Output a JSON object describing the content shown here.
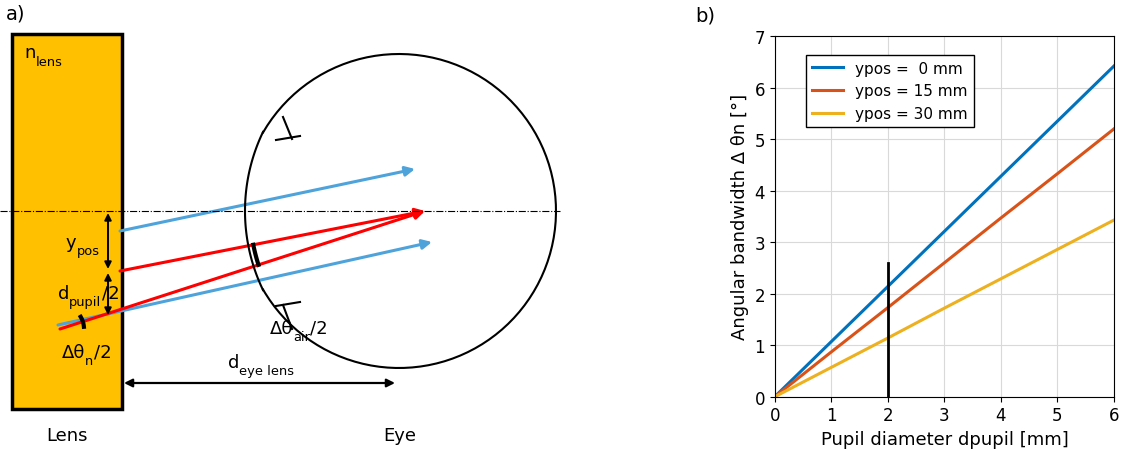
{
  "diagram": {
    "panel_label": "a)",
    "texts": {
      "medium": [
        {
          "text": "n"
        },
        {
          "text": "lens",
          "sub": true
        }
      ],
      "offset": [
        {
          "text": "y"
        },
        {
          "text": "pos",
          "sub": true
        }
      ],
      "half_pupil": [
        {
          "text": "d"
        },
        {
          "text": "pupil",
          "sub": true
        },
        {
          "text": "/2"
        }
      ],
      "half_angle_lens": [
        {
          "text": "Δθ"
        },
        {
          "text": "n",
          "sub": true
        },
        {
          "text": "/2"
        }
      ],
      "half_angle_air": [
        {
          "text": "Δθ"
        },
        {
          "text": "air",
          "sub": true
        },
        {
          "text": "/2"
        }
      ],
      "distance": [
        {
          "text": "d"
        },
        {
          "text": "eye lens",
          "sub": true
        }
      ],
      "lens_label": "Lens",
      "eye_label": "Eye"
    }
  },
  "chart_data": {
    "panel_label": "b)",
    "type": "line",
    "xlabel": "Pupil diameter dpupil [mm]",
    "ylabel": "Angular bandwidth Δ θn [°]",
    "x": [
      0,
      1,
      2,
      3,
      4,
      5,
      6
    ],
    "series": [
      {
        "name": "ypos =  0 mm",
        "color": "#0072BD",
        "values": [
          0,
          1.07,
          2.14,
          3.21,
          4.28,
          5.35,
          6.42
        ]
      },
      {
        "name": "ypos = 15 mm",
        "color": "#D95319",
        "values": [
          0,
          0.87,
          1.73,
          2.6,
          3.47,
          4.33,
          5.2
        ]
      },
      {
        "name": "ypos = 30 mm",
        "color": "#EDB120",
        "values": [
          0,
          0.57,
          1.14,
          1.72,
          2.29,
          2.86,
          3.43
        ]
      }
    ],
    "reference_line": {
      "x": 2,
      "y": [
        0,
        2.6
      ],
      "color": "#000000"
    },
    "xlim": [
      0,
      6
    ],
    "ylim": [
      0,
      7
    ],
    "xticks": [
      0,
      1,
      2,
      3,
      4,
      5,
      6
    ],
    "yticks": [
      0,
      1,
      2,
      3,
      4,
      5,
      6,
      7
    ],
    "grid": true,
    "legend": "upper left"
  }
}
